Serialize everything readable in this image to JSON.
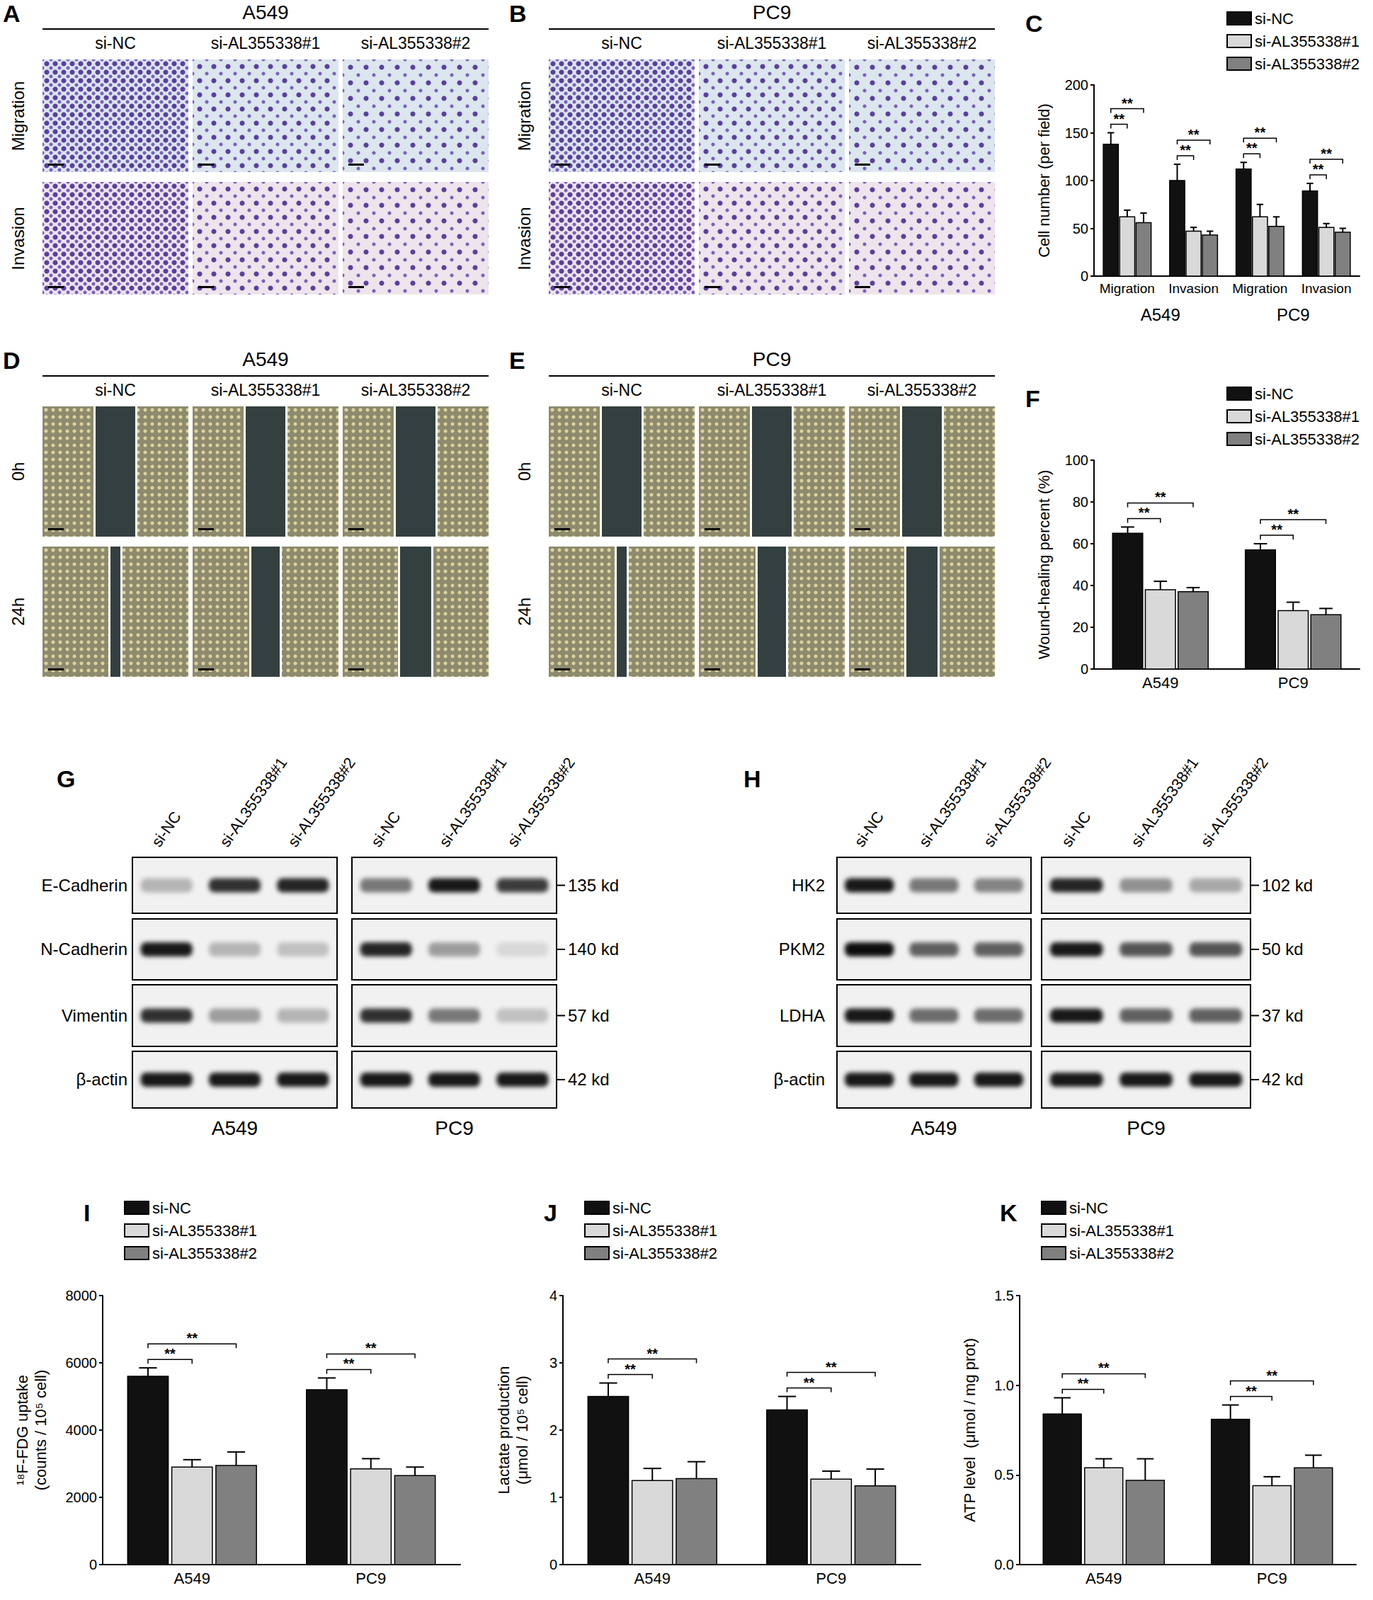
{
  "image_panels": [
    {
      "label": "A",
      "title": "A549",
      "columns": [
        "si-NC",
        "si-AL355338#1",
        "si-AL355338#2"
      ],
      "rows": [
        "Migration",
        "Invasion"
      ]
    },
    {
      "label": "B",
      "title": "PC9",
      "columns": [
        "si-NC",
        "si-AL355338#1",
        "si-AL355338#2"
      ],
      "rows": [
        "Migration",
        "Invasion"
      ]
    },
    {
      "label": "D",
      "title": "A549",
      "columns": [
        "si-NC",
        "si-AL355338#1",
        "si-AL355338#2"
      ],
      "rows": [
        "0h",
        "24h"
      ]
    },
    {
      "label": "E",
      "title": "PC9",
      "columns": [
        "si-NC",
        "si-AL355338#1",
        "si-AL355338#2"
      ],
      "rows": [
        "0h",
        "24h"
      ]
    }
  ],
  "blots": [
    {
      "label": "G",
      "lanes": [
        "si-NC",
        "si-AL355338#1",
        "si-AL355338#2"
      ],
      "cell_lines": [
        "A549",
        "PC9"
      ],
      "rows": [
        {
          "protein": "E-Cadherin",
          "kd": "135 kd",
          "intensity": [
            [
              0.25,
              0.8,
              0.85
            ],
            [
              0.5,
              0.9,
              0.75
            ]
          ]
        },
        {
          "protein": "N-Cadherin",
          "kd": "140 kd",
          "intensity": [
            [
              0.9,
              0.25,
              0.2
            ],
            [
              0.85,
              0.35,
              0.1
            ]
          ]
        },
        {
          "protein": "Vimentin",
          "kd": "57 kd",
          "intensity": [
            [
              0.8,
              0.35,
              0.25
            ],
            [
              0.8,
              0.5,
              0.2
            ]
          ]
        },
        {
          "protein": "β-actin",
          "kd": "42 kd",
          "intensity": [
            [
              0.9,
              0.9,
              0.9
            ],
            [
              0.9,
              0.9,
              0.9
            ]
          ]
        }
      ]
    },
    {
      "label": "H",
      "lanes": [
        "si-NC",
        "si-AL355338#1",
        "si-AL355338#2"
      ],
      "cell_lines": [
        "A549",
        "PC9"
      ],
      "rows": [
        {
          "protein": "HK2",
          "kd": "102 kd",
          "intensity": [
            [
              0.9,
              0.5,
              0.45
            ],
            [
              0.85,
              0.4,
              0.3
            ]
          ]
        },
        {
          "protein": "PKM2",
          "kd": "50 kd",
          "intensity": [
            [
              0.95,
              0.6,
              0.6
            ],
            [
              0.9,
              0.65,
              0.65
            ]
          ]
        },
        {
          "protein": "LDHA",
          "kd": "37 kd",
          "intensity": [
            [
              0.9,
              0.55,
              0.55
            ],
            [
              0.9,
              0.6,
              0.6
            ]
          ]
        },
        {
          "protein": "β-actin",
          "kd": "42 kd",
          "intensity": [
            [
              0.9,
              0.9,
              0.9
            ],
            [
              0.9,
              0.9,
              0.9
            ]
          ]
        }
      ]
    }
  ],
  "chart_data": [
    {
      "panel_label": "C",
      "type": "bar",
      "categories": [
        "Migration",
        "Invasion",
        "Migration",
        "Invasion"
      ],
      "category_groups": [
        "A549",
        "PC9"
      ],
      "y_label": "Cell number (per field)",
      "ylim": [
        0,
        200
      ],
      "yticks": [
        0,
        50,
        100,
        150,
        200
      ],
      "grid": false,
      "legend": "top-right",
      "series": [
        {
          "name": "si-NC",
          "color": "#111111",
          "values": [
            138,
            100,
            112,
            89
          ],
          "errors": [
            12,
            17,
            7,
            8
          ]
        },
        {
          "name": "si-AL355338#1",
          "color": "#d9d9d9",
          "values": [
            62,
            47,
            62,
            51
          ],
          "errors": [
            7,
            4,
            13,
            4
          ]
        },
        {
          "name": "si-AL355338#2",
          "color": "#808080",
          "values": [
            56,
            43,
            52,
            46
          ],
          "errors": [
            10,
            4,
            10,
            4
          ]
        }
      ],
      "comparisons": [
        {
          "pair": [
            "si-NC",
            "si-AL355338#1"
          ],
          "label": "**"
        },
        {
          "pair": [
            "si-NC",
            "si-AL355338#2"
          ],
          "label": "**"
        }
      ]
    },
    {
      "panel_label": "F",
      "type": "bar",
      "categories": [
        "A549",
        "PC9"
      ],
      "y_label": "Wound-healing percent (%)",
      "ylim": [
        0,
        100
      ],
      "yticks": [
        0,
        20,
        40,
        60,
        80,
        100
      ],
      "grid": false,
      "legend": "top-right",
      "series": [
        {
          "name": "si-NC",
          "color": "#111111",
          "values": [
            65,
            57
          ],
          "errors": [
            3,
            3
          ]
        },
        {
          "name": "si-AL355338#1",
          "color": "#d9d9d9",
          "values": [
            38,
            28
          ],
          "errors": [
            4,
            4
          ]
        },
        {
          "name": "si-AL355338#2",
          "color": "#808080",
          "values": [
            37,
            26
          ],
          "errors": [
            2,
            3
          ]
        }
      ],
      "comparisons": [
        {
          "pair": [
            "si-NC",
            "si-AL355338#1"
          ],
          "label": "**"
        },
        {
          "pair": [
            "si-NC",
            "si-AL355338#2"
          ],
          "label": "**"
        }
      ]
    },
    {
      "panel_label": "I",
      "type": "bar",
      "categories": [
        "A549",
        "PC9"
      ],
      "y_label": "¹⁸F-FDG uptake\n(counts / 10⁵ cell)",
      "ylim": [
        0,
        8000
      ],
      "yticks": [
        0,
        2000,
        4000,
        6000,
        8000
      ],
      "grid": false,
      "legend": "top-left",
      "series": [
        {
          "name": "si-NC",
          "color": "#111111",
          "values": [
            5600,
            5200
          ],
          "errors": [
            250,
            350
          ]
        },
        {
          "name": "si-AL355338#1",
          "color": "#d9d9d9",
          "values": [
            2900,
            2850
          ],
          "errors": [
            220,
            300
          ]
        },
        {
          "name": "si-AL355338#2",
          "color": "#808080",
          "values": [
            2950,
            2650
          ],
          "errors": [
            400,
            250
          ]
        }
      ],
      "comparisons": [
        {
          "pair": [
            "si-NC",
            "si-AL355338#1"
          ],
          "label": "**"
        },
        {
          "pair": [
            "si-NC",
            "si-AL355338#2"
          ],
          "label": "**"
        }
      ]
    },
    {
      "panel_label": "J",
      "type": "bar",
      "categories": [
        "A549",
        "PC9"
      ],
      "y_label": "Lactate production\n(μmol / 10⁵ cell)",
      "ylim": [
        0,
        4
      ],
      "yticks": [
        0,
        1,
        2,
        3,
        4
      ],
      "grid": false,
      "legend": "top-left",
      "series": [
        {
          "name": "si-NC",
          "color": "#111111",
          "values": [
            2.5,
            2.3
          ],
          "errors": [
            0.2,
            0.2
          ]
        },
        {
          "name": "si-AL355338#1",
          "color": "#d9d9d9",
          "values": [
            1.25,
            1.27
          ],
          "errors": [
            0.18,
            0.12
          ]
        },
        {
          "name": "si-AL355338#2",
          "color": "#808080",
          "values": [
            1.28,
            1.17
          ],
          "errors": [
            0.25,
            0.25
          ]
        }
      ],
      "comparisons": [
        {
          "pair": [
            "si-NC",
            "si-AL355338#1"
          ],
          "label": "**"
        },
        {
          "pair": [
            "si-NC",
            "si-AL355338#2"
          ],
          "label": "**"
        }
      ]
    },
    {
      "panel_label": "K",
      "type": "bar",
      "categories": [
        "A549",
        "PC9"
      ],
      "y_label": "ATP level  (μmol / mg prot)",
      "ylim": [
        0,
        1.5
      ],
      "yticks": [
        {
          "value": 0,
          "label": "0.0"
        },
        0.5,
        {
          "value": 1,
          "label": "1.0"
        },
        1.5
      ],
      "grid": false,
      "legend": "top-left",
      "series": [
        {
          "name": "si-NC",
          "color": "#111111",
          "values": [
            0.84,
            0.81
          ],
          "errors": [
            0.09,
            0.08
          ]
        },
        {
          "name": "si-AL355338#1",
          "color": "#d9d9d9",
          "values": [
            0.54,
            0.44
          ],
          "errors": [
            0.05,
            0.05
          ]
        },
        {
          "name": "si-AL355338#2",
          "color": "#808080",
          "values": [
            0.47,
            0.54
          ],
          "errors": [
            0.12,
            0.07
          ]
        }
      ],
      "comparisons": [
        {
          "pair": [
            "si-NC",
            "si-AL355338#1"
          ],
          "label": "**"
        },
        {
          "pair": [
            "si-NC",
            "si-AL355338#2"
          ],
          "label": "**"
        }
      ]
    }
  ]
}
